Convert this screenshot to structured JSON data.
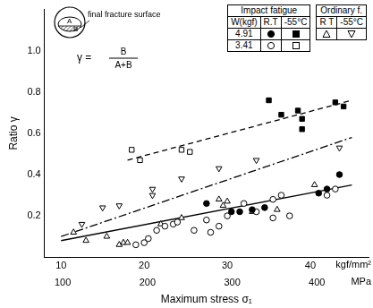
{
  "chart_data": {
    "type": "scatter",
    "x_label": "Maximum stress σ₁",
    "y_label": "Ratio γ",
    "xunit": "kgf/mm²",
    "x2unit": "MPa",
    "xlim": [
      8,
      47
    ],
    "xticks": [
      10,
      20,
      30,
      40
    ],
    "x2lim": [
      78.45,
      460.91
    ],
    "x2ticks": [
      100,
      200,
      300,
      400
    ],
    "ylim": [
      0,
      1.2
    ],
    "yticks": [
      0.2,
      0.4,
      0.6,
      0.8,
      {
        "value": 1,
        "label": "1.0"
      }
    ],
    "grid": false,
    "inset": {
      "label_a": "A",
      "label_b": "B",
      "caption": "final fracture surface"
    },
    "formula": {
      "lhs": "γ =",
      "numerator": "B",
      "denominator": "A+B"
    },
    "legend_table": {
      "impact": {
        "title": "Impact fatigue",
        "row_header": "W(kgf)",
        "columns": [
          "R.T",
          "-55°C"
        ]
      },
      "ordinary": {
        "title": "Ordinary f.",
        "columns": [
          "R T",
          "-55°C"
        ]
      }
    },
    "series": [
      {
        "test": "Impact fatigue",
        "load": "4.91",
        "temperature": "R.T",
        "marker": "circle",
        "color": "#000000",
        "x": [
          27.5,
          30.5,
          31.5,
          33,
          34.5,
          41,
          42,
          43.5
        ],
        "values": [
          0.26,
          0.22,
          0.22,
          0.23,
          0.24,
          0.31,
          0.33,
          0.4
        ]
      },
      {
        "test": "Impact fatigue",
        "load": "4.91",
        "temperature": "-55°C",
        "marker": "square",
        "color": "#000000",
        "x": [
          35,
          36.5,
          38.5,
          39,
          39,
          43,
          44
        ],
        "values": [
          0.76,
          0.69,
          0.71,
          0.67,
          0.62,
          0.75,
          0.73
        ]
      },
      {
        "test": "Impact fatigue",
        "load": "3.41",
        "temperature": "R.T",
        "marker": "circle-open",
        "color": "#000000",
        "x": [
          19,
          20,
          20.5,
          21.5,
          22.5,
          23.5,
          24,
          26,
          27.5,
          28,
          29,
          30,
          32,
          33.5,
          35.5,
          35.5,
          36.5,
          37.5,
          42,
          43
        ],
        "values": [
          0.06,
          0.07,
          0.09,
          0.13,
          0.15,
          0.16,
          0.17,
          0.13,
          0.18,
          0.12,
          0.15,
          0.2,
          0.26,
          0.22,
          0.19,
          0.28,
          0.3,
          0.2,
          0.3,
          0.33
        ]
      },
      {
        "test": "Impact fatigue",
        "load": "3.41",
        "temperature": "-55°C",
        "marker": "square-open",
        "color": "#000000",
        "x": [
          18.5,
          19.5,
          24.5,
          25.5
        ],
        "values": [
          0.52,
          0.47,
          0.52,
          0.51
        ]
      },
      {
        "test": "Ordinary f.",
        "temperature": "R T",
        "marker": "triangle-open",
        "color": "#000000",
        "x": [
          11.5,
          13,
          15.5,
          17,
          17.5,
          18,
          22,
          24.5,
          29,
          29.5,
          30,
          33,
          36,
          40.5
        ],
        "values": [
          0.12,
          0.08,
          0.1,
          0.06,
          0.07,
          0.07,
          0.16,
          0.19,
          0.28,
          0.25,
          0.27,
          0.22,
          0.23,
          0.35
        ]
      },
      {
        "test": "Ordinary f.",
        "temperature": "-55°C",
        "marker": "triangle-down-open",
        "color": "#000000",
        "x": [
          12.5,
          15,
          17,
          21,
          21,
          24.5,
          29,
          33.5,
          43.5
        ],
        "values": [
          0.16,
          0.24,
          0.25,
          0.3,
          0.33,
          0.38,
          0.43,
          0.47,
          0.53
        ]
      },
      {
        "type": "line",
        "line_style": "solid",
        "color": "#000000",
        "x": [
          10,
          45
        ],
        "values": [
          0.08,
          0.35
        ]
      },
      {
        "type": "line",
        "line_style": "dashdot",
        "color": "#000000",
        "x": [
          10,
          45
        ],
        "values": [
          0.1,
          0.58
        ]
      },
      {
        "type": "line",
        "line_style": "dashed",
        "color": "#000000",
        "x": [
          18,
          45
        ],
        "values": [
          0.47,
          0.76
        ]
      }
    ]
  }
}
